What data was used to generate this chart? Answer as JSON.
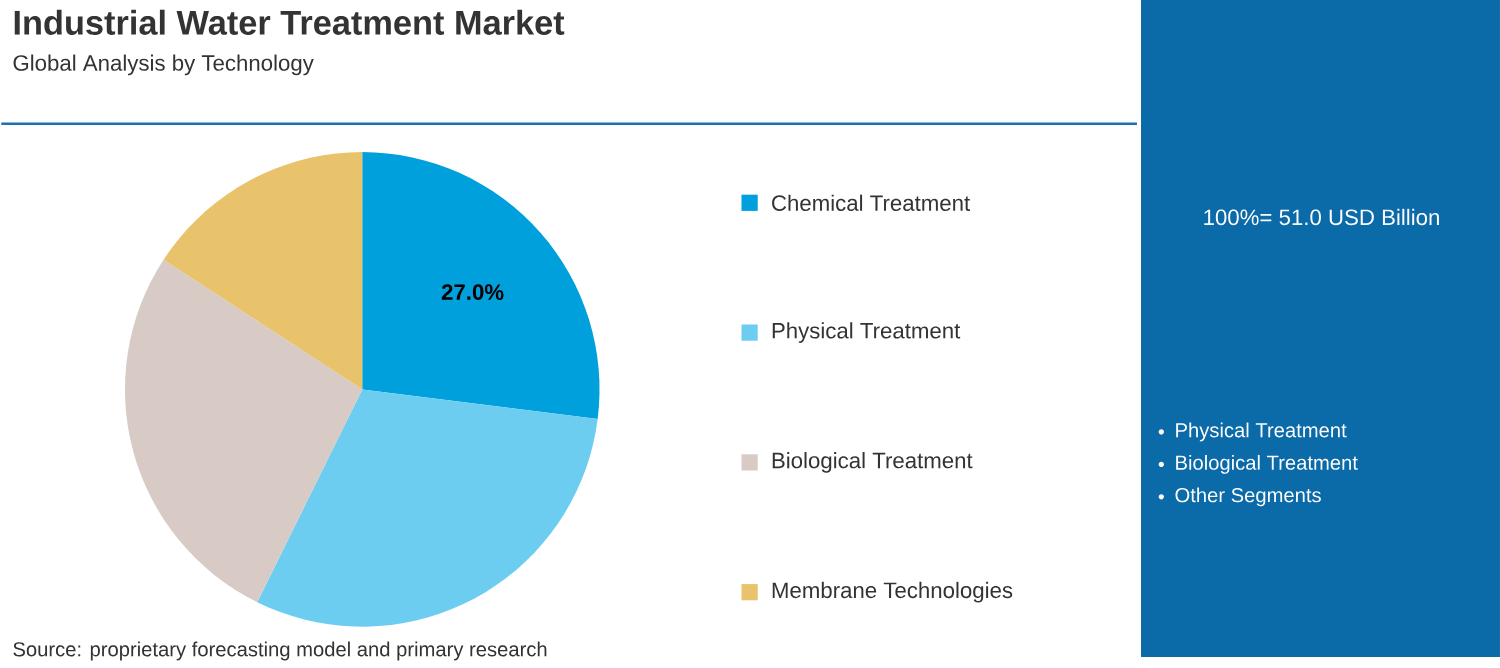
{
  "chart_data": {
    "type": "pie",
    "title": "Industrial Water Treatment Market",
    "subtitle": "Global Analysis by Technology",
    "categories": [
      "Chemical Treatment",
      "Physical Treatment",
      "Biological Treatment",
      "Membrane Technologies"
    ],
    "values": [
      27.0,
      30.3,
      26.9,
      15.8
    ],
    "colors": [
      "#00a0dc",
      "#6dcdf0",
      "#d8cbc6",
      "#e8c36c"
    ],
    "value_labels": [
      "27.0%",
      null,
      null,
      null
    ],
    "legend": "right",
    "annotations": [
      "100%= 51.0 USD Billion",
      "Physical Treatment",
      "Biological Treatment",
      "Other Segments",
      "Source: proprietary forecasting model and primary research"
    ]
  }
}
